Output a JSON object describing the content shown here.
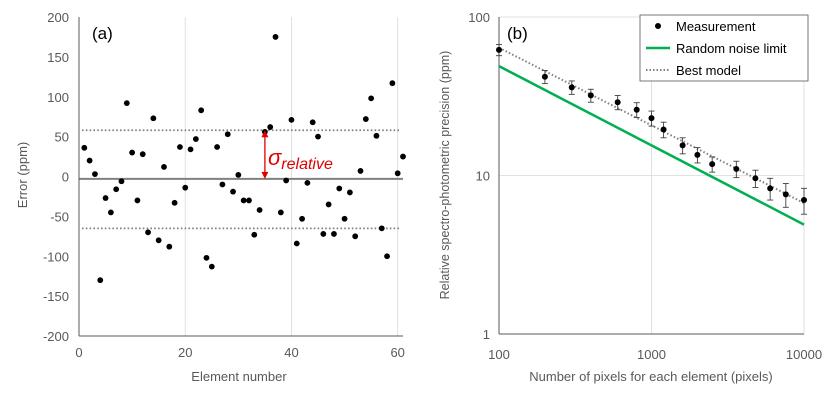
{
  "colors": {
    "axis": "#595959",
    "grid": "#d9d9d9",
    "text": "#595959",
    "marker": "#000000",
    "dotted": "#7f7f7f",
    "accent": "#e00000",
    "green": "#00b050"
  },
  "chart_data": [
    {
      "panel_label": "(a)",
      "type": "scatter",
      "xlabel": "Element number",
      "ylabel": "Error (ppm)",
      "xlim": [
        0,
        61
      ],
      "ylim": [
        -200,
        200
      ],
      "x_ticks": [
        0,
        20,
        40,
        60
      ],
      "x_tick_labels": [
        "0",
        "20",
        "40",
        "60"
      ],
      "y_ticks": [
        -200,
        -150,
        -100,
        -50,
        0,
        50,
        100,
        150,
        200
      ],
      "y_tick_labels": [
        "-200",
        "-150",
        "-100",
        "-50",
        "0",
        "50",
        "100",
        "150",
        "200"
      ],
      "gridlines": "vertical",
      "x": [
        1,
        2,
        3,
        4,
        5,
        6,
        7,
        8,
        9,
        10,
        11,
        12,
        13,
        14,
        15,
        16,
        17,
        18,
        19,
        20,
        21,
        22,
        23,
        24,
        25,
        26,
        27,
        28,
        29,
        30,
        31,
        32,
        33,
        34,
        35,
        36,
        37,
        38,
        39,
        40,
        41,
        42,
        43,
        44,
        45,
        46,
        47,
        48,
        49,
        50,
        51,
        52,
        53,
        54,
        55,
        56,
        57,
        58,
        59,
        60,
        61
      ],
      "y": [
        36,
        20,
        3,
        -130,
        -27,
        -45,
        -16,
        -6,
        92,
        30,
        -30,
        28,
        -70,
        73,
        -80,
        12,
        -88,
        -33,
        37,
        -14,
        34,
        47,
        83,
        -102,
        -113,
        37,
        -10,
        53,
        -19,
        2,
        -30,
        -30,
        -73,
        -42,
        56,
        62,
        175,
        -45,
        -5,
        71,
        -84,
        -53,
        -8,
        68,
        50,
        -72,
        -35,
        -72,
        -15,
        -53,
        -20,
        -75,
        7,
        72,
        98,
        51,
        -65,
        -100,
        117,
        4,
        25
      ],
      "reference_lines": [
        {
          "name": "mean",
          "value": -3,
          "style": "solid"
        },
        {
          "name": "upper sigma",
          "value": 58,
          "style": "dotted"
        },
        {
          "name": "lower sigma",
          "value": -65,
          "style": "dotted"
        }
      ],
      "annotation": {
        "text": "σ",
        "subscript": "relative",
        "x": 35,
        "from": -3,
        "to": 58
      }
    },
    {
      "panel_label": "(b)",
      "type": "scatter",
      "xscale": "log",
      "yscale": "log",
      "xlabel": "Number of pixels for each element (pixels)",
      "ylabel": "Relative spectro-photometric precision (ppm)",
      "xlim": [
        100,
        10000
      ],
      "ylim": [
        1,
        100
      ],
      "x_ticks": [
        100,
        1000,
        10000
      ],
      "x_tick_labels": [
        "100",
        "1000",
        "10000"
      ],
      "y_ticks": [
        1,
        10,
        100
      ],
      "y_tick_labels": [
        "1",
        "10",
        "100"
      ],
      "gridlines": "major",
      "legend_position": "top-right",
      "series": [
        {
          "name": "Measurement",
          "kind": "points-with-errorbars",
          "x": [
            100,
            200,
            300,
            400,
            600,
            800,
            1000,
            1200,
            1600,
            2000,
            2500,
            3600,
            4800,
            6000,
            7600,
            10000
          ],
          "y": [
            62,
            42,
            36,
            32,
            29,
            26,
            23,
            19.5,
            15.5,
            13.5,
            11.8,
            11,
            9.6,
            8.3,
            7.6,
            7
          ],
          "err": [
            5,
            4,
            3.5,
            3,
            3,
            2.8,
            2.5,
            2.2,
            1.8,
            1.5,
            1.3,
            1.3,
            1.2,
            1.3,
            1.3,
            1.3
          ]
        },
        {
          "name": "Random noise limit",
          "kind": "line",
          "x": [
            100,
            10000
          ],
          "y": [
            49,
            4.9
          ]
        },
        {
          "name": "Best model",
          "kind": "dotted-line",
          "x": [
            100,
            10000
          ],
          "y": [
            64,
            6.7
          ]
        }
      ]
    }
  ]
}
